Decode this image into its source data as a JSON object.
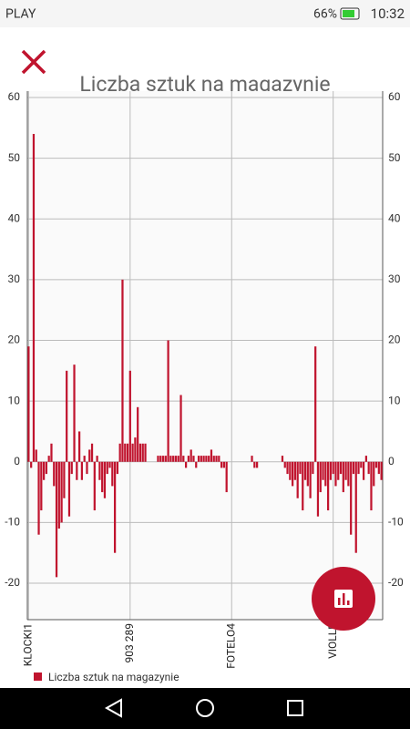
{
  "status_bar": {
    "carrier": "PLAY",
    "battery": "66%",
    "time": "10:32"
  },
  "chart_data": {
    "type": "bar",
    "title": "Liczba sztuk na magazynie",
    "color": "#c0142e",
    "categories": [
      "KLOCKI1",
      null,
      null,
      null,
      null,
      null,
      null,
      null,
      null,
      null,
      null,
      null,
      null,
      null,
      null,
      null,
      null,
      null,
      null,
      null,
      null,
      null,
      null,
      null,
      null,
      null,
      null,
      null,
      null,
      null,
      null,
      null,
      null,
      null,
      null,
      null,
      null,
      null,
      null,
      null,
      "903 289",
      null,
      null,
      null,
      null,
      null,
      null,
      null,
      null,
      null,
      null,
      null,
      null,
      null,
      null,
      null,
      null,
      null,
      null,
      null,
      null,
      null,
      null,
      null,
      null,
      null,
      null,
      null,
      null,
      null,
      null,
      null,
      null,
      null,
      null,
      null,
      null,
      null,
      null,
      null,
      "FOTELO4",
      null,
      null,
      null,
      null,
      null,
      null,
      null,
      null,
      null,
      null,
      null,
      null,
      null,
      null,
      null,
      null,
      null,
      null,
      null,
      null,
      null,
      null,
      null,
      null,
      null,
      null,
      null,
      null,
      null,
      null,
      null,
      null,
      null,
      null,
      null,
      null,
      null,
      null,
      null,
      "VIOLLE",
      null,
      null,
      null,
      null,
      null,
      null,
      null,
      null,
      null,
      null,
      null,
      null,
      null,
      null,
      null,
      null,
      null,
      null,
      null
    ],
    "series": [
      {
        "name": "Liczba sztuk na magazynie",
        "color": "#c0142e",
        "values": [
          19,
          -1,
          54,
          2,
          -12,
          -8,
          -3,
          -2,
          1,
          3,
          -4,
          -19,
          -11,
          -10,
          -6,
          15,
          -9,
          -2,
          16,
          -3,
          5,
          -3,
          1,
          -2,
          2,
          3,
          -8,
          1,
          -3,
          -5,
          -6,
          -2,
          -1,
          -4,
          -15,
          -2,
          3,
          30,
          3,
          3,
          15,
          3,
          4,
          9,
          3,
          3,
          3,
          0,
          0,
          0,
          0,
          1,
          1,
          1,
          1,
          20,
          1,
          1,
          1,
          1,
          11,
          1,
          -1,
          1,
          2,
          1,
          -1,
          1,
          1,
          1,
          1,
          1,
          2,
          1,
          1,
          1,
          -1,
          -1,
          -5,
          0,
          0,
          0,
          0,
          0,
          0,
          0,
          0,
          0,
          1,
          -1,
          -1,
          0,
          0,
          0,
          0,
          0,
          0,
          0,
          0,
          0,
          1,
          -1,
          -2,
          -3,
          -4,
          -3,
          -6,
          -2,
          -8,
          -3,
          -4,
          -6,
          -2,
          19,
          -9,
          -5,
          -3,
          -4,
          -8,
          -3,
          -2,
          -4,
          -3,
          -2,
          -5,
          -3,
          -4,
          -12,
          -2,
          -15,
          -2,
          -1,
          -3,
          1,
          -2,
          -8,
          -4,
          -1,
          -2,
          -3
        ]
      }
    ],
    "ylim": [
      -26,
      60
    ],
    "yticks": [
      -20,
      -10,
      0,
      10,
      20,
      30,
      40,
      50,
      60
    ],
    "grid": true
  }
}
